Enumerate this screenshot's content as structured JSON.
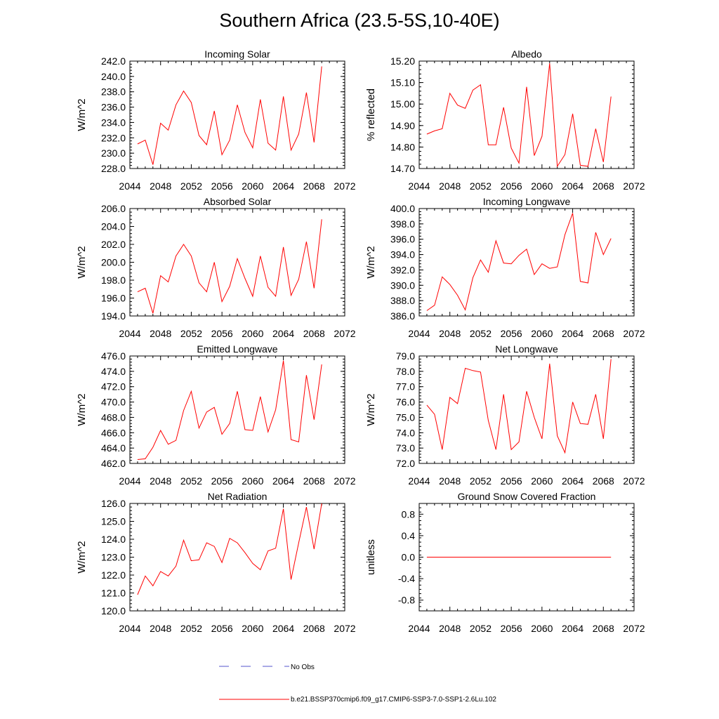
{
  "title": "Southern Africa (23.5-5S,10-40E)",
  "colors": {
    "series": "#ff0000",
    "obs": "#5555cc",
    "axis": "#000000"
  },
  "legend": {
    "obs_label": "No Obs",
    "model_label": "b.e21.BSSP370cmip6.f09_g17.CMIP6-SSP3-7.0-SSP1-2.6Lu.102"
  },
  "chart_data": [
    {
      "type": "line",
      "title": "Incoming Solar",
      "ylabel": "W/m^2",
      "xlim": [
        2044,
        2072
      ],
      "ylim": [
        228.0,
        242.0
      ],
      "x_ticks": [
        2044,
        2048,
        2052,
        2056,
        2060,
        2064,
        2068,
        2072
      ],
      "y_ticks": [
        228.0,
        230.0,
        232.0,
        234.0,
        236.0,
        238.0,
        240.0,
        242.0
      ],
      "y_decimals": 1,
      "x": [
        2045,
        2046,
        2047,
        2048,
        2049,
        2050,
        2051,
        2052,
        2053,
        2054,
        2055,
        2056,
        2057,
        2058,
        2059,
        2060,
        2061,
        2062,
        2063,
        2064,
        2065,
        2066,
        2067,
        2068,
        2069
      ],
      "values": [
        231.2,
        231.7,
        228.5,
        233.9,
        233.0,
        236.3,
        238.1,
        236.6,
        232.3,
        231.1,
        235.5,
        229.8,
        231.7,
        236.3,
        232.7,
        230.7,
        237.0,
        231.3,
        230.4,
        237.4,
        230.4,
        232.5,
        237.9,
        231.4,
        241.3
      ]
    },
    {
      "type": "line",
      "title": "Albedo",
      "ylabel": "% reflected",
      "xlim": [
        2044,
        2072
      ],
      "ylim": [
        14.7,
        15.2
      ],
      "x_ticks": [
        2044,
        2048,
        2052,
        2056,
        2060,
        2064,
        2068,
        2072
      ],
      "y_ticks": [
        14.7,
        14.8,
        14.9,
        15.0,
        15.1,
        15.2
      ],
      "y_decimals": 2,
      "x": [
        2045,
        2046,
        2047,
        2048,
        2049,
        2050,
        2051,
        2052,
        2053,
        2054,
        2055,
        2056,
        2057,
        2058,
        2059,
        2060,
        2061,
        2062,
        2063,
        2064,
        2065,
        2066,
        2067,
        2068,
        2069
      ],
      "values": [
        14.86,
        14.875,
        14.885,
        15.05,
        14.995,
        14.98,
        15.065,
        15.09,
        14.81,
        14.81,
        14.985,
        14.795,
        14.725,
        15.08,
        14.76,
        14.85,
        15.19,
        14.71,
        14.765,
        14.955,
        14.715,
        14.71,
        14.885,
        14.73,
        15.035
      ]
    },
    {
      "type": "line",
      "title": "Absorbed Solar",
      "ylabel": "W/m^2",
      "xlim": [
        2044,
        2072
      ],
      "ylim": [
        194.0,
        206.0
      ],
      "x_ticks": [
        2044,
        2048,
        2052,
        2056,
        2060,
        2064,
        2068,
        2072
      ],
      "y_ticks": [
        194.0,
        196.0,
        198.0,
        200.0,
        202.0,
        204.0,
        206.0
      ],
      "y_decimals": 1,
      "x": [
        2045,
        2046,
        2047,
        2048,
        2049,
        2050,
        2051,
        2052,
        2053,
        2054,
        2055,
        2056,
        2057,
        2058,
        2059,
        2060,
        2061,
        2062,
        2063,
        2064,
        2065,
        2066,
        2067,
        2068,
        2069
      ],
      "values": [
        196.7,
        197.1,
        194.3,
        198.5,
        197.8,
        200.7,
        202.0,
        200.7,
        197.7,
        196.7,
        200.0,
        195.6,
        197.3,
        200.4,
        198.2,
        196.2,
        200.7,
        197.2,
        196.2,
        201.7,
        196.3,
        198.1,
        202.3,
        197.1,
        204.8
      ]
    },
    {
      "type": "line",
      "title": "Incoming Longwave",
      "ylabel": "W/m^2",
      "xlim": [
        2044,
        2072
      ],
      "ylim": [
        386.0,
        400.0
      ],
      "x_ticks": [
        2044,
        2048,
        2052,
        2056,
        2060,
        2064,
        2068,
        2072
      ],
      "y_ticks": [
        386.0,
        388.0,
        390.0,
        392.0,
        394.0,
        396.0,
        398.0,
        400.0
      ],
      "y_decimals": 1,
      "x": [
        2045,
        2046,
        2047,
        2048,
        2049,
        2050,
        2051,
        2052,
        2053,
        2054,
        2055,
        2056,
        2057,
        2058,
        2059,
        2060,
        2061,
        2062,
        2063,
        2064,
        2065,
        2066,
        2067,
        2068,
        2069
      ],
      "values": [
        386.7,
        387.4,
        391.1,
        390.1,
        388.7,
        386.8,
        391.0,
        393.3,
        391.7,
        395.8,
        392.9,
        392.8,
        393.9,
        394.7,
        391.4,
        392.8,
        392.2,
        392.4,
        396.6,
        399.4,
        390.5,
        390.3,
        396.9,
        394.0,
        396.1
      ]
    },
    {
      "type": "line",
      "title": "Emitted Longwave",
      "ylabel": "W/m^2",
      "xlim": [
        2044,
        2072
      ],
      "ylim": [
        462.0,
        476.0
      ],
      "x_ticks": [
        2044,
        2048,
        2052,
        2056,
        2060,
        2064,
        2068,
        2072
      ],
      "y_ticks": [
        462.0,
        464.0,
        466.0,
        468.0,
        470.0,
        472.0,
        474.0,
        476.0
      ],
      "y_decimals": 1,
      "x": [
        2045,
        2046,
        2047,
        2048,
        2049,
        2050,
        2051,
        2052,
        2053,
        2054,
        2055,
        2056,
        2057,
        2058,
        2059,
        2060,
        2061,
        2062,
        2063,
        2064,
        2065,
        2066,
        2067,
        2068,
        2069
      ],
      "values": [
        462.5,
        462.6,
        464.1,
        466.3,
        464.5,
        465.0,
        468.9,
        471.4,
        466.6,
        468.7,
        469.3,
        465.8,
        467.2,
        471.4,
        466.4,
        466.3,
        470.7,
        466.1,
        469.0,
        475.4,
        465.1,
        464.8,
        473.5,
        467.7,
        474.9
      ]
    },
    {
      "type": "line",
      "title": "Net Longwave",
      "ylabel": "W/m^2",
      "xlim": [
        2044,
        2072
      ],
      "ylim": [
        72.0,
        79.0
      ],
      "x_ticks": [
        2044,
        2048,
        2052,
        2056,
        2060,
        2064,
        2068,
        2072
      ],
      "y_ticks": [
        72.0,
        73.0,
        74.0,
        75.0,
        76.0,
        77.0,
        78.0,
        79.0
      ],
      "y_decimals": 1,
      "x": [
        2045,
        2046,
        2047,
        2048,
        2049,
        2050,
        2051,
        2052,
        2053,
        2054,
        2055,
        2056,
        2057,
        2058,
        2059,
        2060,
        2061,
        2062,
        2063,
        2064,
        2065,
        2066,
        2067,
        2068,
        2069
      ],
      "values": [
        75.8,
        75.2,
        72.9,
        76.3,
        75.9,
        78.2,
        78.05,
        77.95,
        74.8,
        72.9,
        76.5,
        72.9,
        73.4,
        76.7,
        75.0,
        73.6,
        78.5,
        73.8,
        72.7,
        76.0,
        74.6,
        74.55,
        76.5,
        73.6,
        78.8
      ]
    },
    {
      "type": "line",
      "title": "Net Radiation",
      "ylabel": "W/m^2",
      "xlim": [
        2044,
        2072
      ],
      "ylim": [
        120.0,
        126.0
      ],
      "x_ticks": [
        2044,
        2048,
        2052,
        2056,
        2060,
        2064,
        2068,
        2072
      ],
      "y_ticks": [
        120.0,
        121.0,
        122.0,
        123.0,
        124.0,
        125.0,
        126.0
      ],
      "y_decimals": 1,
      "x": [
        2045,
        2046,
        2047,
        2048,
        2049,
        2050,
        2051,
        2052,
        2053,
        2054,
        2055,
        2056,
        2057,
        2058,
        2059,
        2060,
        2061,
        2062,
        2063,
        2064,
        2065,
        2066,
        2067,
        2068,
        2069
      ],
      "values": [
        120.9,
        121.95,
        121.4,
        122.2,
        121.95,
        122.5,
        123.95,
        122.8,
        122.85,
        123.8,
        123.6,
        122.7,
        124.05,
        123.8,
        123.25,
        122.65,
        122.3,
        123.35,
        123.5,
        125.7,
        121.75,
        123.8,
        125.8,
        123.45,
        126.0
      ]
    },
    {
      "type": "line",
      "title": "Ground Snow Covered Fraction",
      "ylabel": "unitless",
      "xlim": [
        2044,
        2072
      ],
      "ylim": [
        -1.0,
        1.0
      ],
      "x_ticks": [
        2044,
        2048,
        2052,
        2056,
        2060,
        2064,
        2068,
        2072
      ],
      "y_ticks": [
        -0.8,
        -0.4,
        0.0,
        0.4,
        0.8
      ],
      "y_decimals": 1,
      "x": [
        2045,
        2069
      ],
      "values": [
        0.0,
        0.0
      ]
    }
  ]
}
